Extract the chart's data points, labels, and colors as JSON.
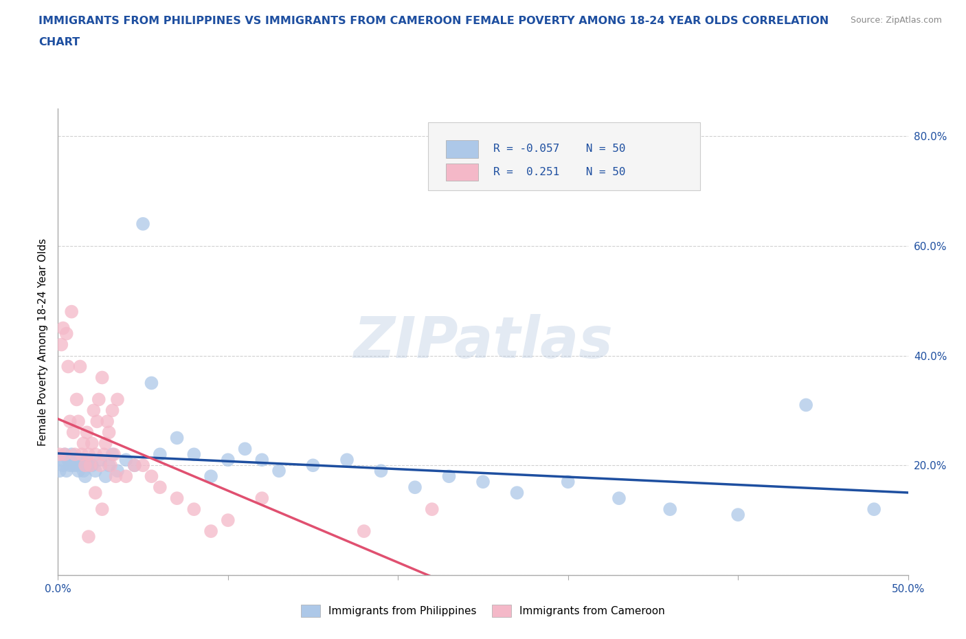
{
  "title_line1": "IMMIGRANTS FROM PHILIPPINES VS IMMIGRANTS FROM CAMEROON FEMALE POVERTY AMONG 18-24 YEAR OLDS CORRELATION",
  "title_line2": "CHART",
  "source": "Source: ZipAtlas.com",
  "ylabel": "Female Poverty Among 18-24 Year Olds",
  "xlim": [
    0.0,
    0.5
  ],
  "ylim": [
    0.0,
    0.85
  ],
  "xticks": [
    0.0,
    0.1,
    0.2,
    0.3,
    0.4,
    0.5
  ],
  "xticklabels": [
    "0.0%",
    "",
    "",
    "",
    "",
    "50.0%"
  ],
  "yticks": [
    0.0,
    0.2,
    0.4,
    0.6,
    0.8
  ],
  "yticklabels": [
    "",
    "20.0%",
    "40.0%",
    "60.0%",
    "80.0%"
  ],
  "philippines_color": "#adc8e8",
  "cameroon_color": "#f4b8c8",
  "philippines_line_color": "#1e4fa0",
  "cameroon_line_color": "#e05070",
  "title_color": "#1e4fa0",
  "axis_color": "#1e4fa0",
  "watermark": "ZIPatlas",
  "grid_color": "#d0d0d0",
  "philippines_x": [
    0.001,
    0.002,
    0.003,
    0.004,
    0.005,
    0.006,
    0.007,
    0.008,
    0.009,
    0.01,
    0.011,
    0.012,
    0.013,
    0.014,
    0.015,
    0.016,
    0.017,
    0.018,
    0.02,
    0.022,
    0.025,
    0.028,
    0.03,
    0.032,
    0.035,
    0.04,
    0.045,
    0.05,
    0.055,
    0.06,
    0.07,
    0.08,
    0.09,
    0.1,
    0.11,
    0.12,
    0.13,
    0.15,
    0.17,
    0.19,
    0.21,
    0.23,
    0.25,
    0.27,
    0.3,
    0.33,
    0.36,
    0.4,
    0.44,
    0.48
  ],
  "philippines_y": [
    0.19,
    0.21,
    0.2,
    0.22,
    0.19,
    0.21,
    0.2,
    0.22,
    0.2,
    0.21,
    0.2,
    0.19,
    0.21,
    0.2,
    0.19,
    0.18,
    0.21,
    0.2,
    0.2,
    0.19,
    0.21,
    0.18,
    0.2,
    0.22,
    0.19,
    0.21,
    0.2,
    0.64,
    0.35,
    0.22,
    0.25,
    0.22,
    0.18,
    0.21,
    0.23,
    0.21,
    0.19,
    0.2,
    0.21,
    0.19,
    0.16,
    0.18,
    0.17,
    0.15,
    0.17,
    0.14,
    0.12,
    0.11,
    0.31,
    0.12
  ],
  "cameroon_x": [
    0.001,
    0.002,
    0.003,
    0.004,
    0.005,
    0.006,
    0.007,
    0.008,
    0.009,
    0.01,
    0.011,
    0.012,
    0.013,
    0.014,
    0.015,
    0.016,
    0.017,
    0.018,
    0.019,
    0.02,
    0.021,
    0.022,
    0.023,
    0.024,
    0.025,
    0.026,
    0.027,
    0.028,
    0.029,
    0.03,
    0.031,
    0.032,
    0.033,
    0.034,
    0.035,
    0.04,
    0.045,
    0.05,
    0.055,
    0.06,
    0.07,
    0.08,
    0.09,
    0.1,
    0.12,
    0.018,
    0.022,
    0.026,
    0.18,
    0.22
  ],
  "cameroon_y": [
    0.22,
    0.42,
    0.45,
    0.22,
    0.44,
    0.38,
    0.28,
    0.48,
    0.26,
    0.22,
    0.32,
    0.28,
    0.38,
    0.22,
    0.24,
    0.2,
    0.26,
    0.22,
    0.2,
    0.24,
    0.3,
    0.22,
    0.28,
    0.32,
    0.2,
    0.36,
    0.22,
    0.24,
    0.28,
    0.26,
    0.2,
    0.3,
    0.22,
    0.18,
    0.32,
    0.18,
    0.2,
    0.2,
    0.18,
    0.16,
    0.14,
    0.12,
    0.08,
    0.1,
    0.14,
    0.07,
    0.15,
    0.12,
    0.08,
    0.12
  ]
}
